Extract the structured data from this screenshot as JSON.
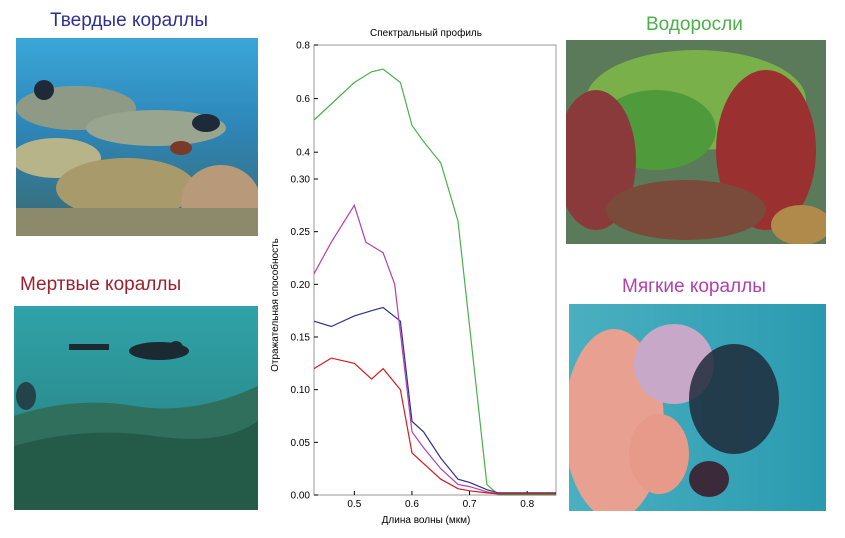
{
  "panels": {
    "hard_corals": {
      "label": "Твердые кораллы",
      "color": "#2e3192"
    },
    "dead_corals": {
      "label": "Мертвые кораллы",
      "color": "#9e1f2e"
    },
    "algae": {
      "label": "Водоросли",
      "color": "#4daf4a"
    },
    "soft_corals": {
      "label": "Мягкие кораллы",
      "color": "#b040b0"
    }
  },
  "chart_data": {
    "type": "line",
    "title": "Спектральный профиль",
    "xlabel": "Длина волны (мкм)",
    "ylabel": "Отражательная способность",
    "xlim": [
      0.43,
      0.85
    ],
    "ylim": [
      0,
      0.8
    ],
    "x_ticks": [
      {
        "value": 0.5,
        "label": "0.5"
      },
      {
        "value": 0.6,
        "label": "0.6"
      },
      {
        "value": 0.7,
        "label": "0.7"
      },
      {
        "value": 0.8,
        "label": "0.8"
      }
    ],
    "y_ticks": [
      {
        "value": 0.0,
        "label": "0.00"
      },
      {
        "value": 0.05,
        "label": "0.05"
      },
      {
        "value": 0.1,
        "label": "0.10"
      },
      {
        "value": 0.15,
        "label": "0.15"
      },
      {
        "value": 0.2,
        "label": "0.20"
      },
      {
        "value": 0.25,
        "label": "0.25"
      },
      {
        "value": 0.3,
        "label": "0.30"
      },
      {
        "value": 0.4,
        "label": "0.4"
      },
      {
        "value": 0.6,
        "label": "0.6"
      },
      {
        "value": 0.8,
        "label": "0.8"
      }
    ],
    "series": [
      {
        "color": "#4daf4a",
        "x": [
          0.43,
          0.46,
          0.5,
          0.53,
          0.55,
          0.58,
          0.6,
          0.62,
          0.65,
          0.68,
          0.7,
          0.73,
          0.75,
          0.85
        ],
        "y": [
          0.52,
          0.58,
          0.66,
          0.7,
          0.71,
          0.66,
          0.5,
          0.44,
          0.36,
          0.26,
          0.16,
          0.01,
          0.0,
          0.0
        ]
      },
      {
        "color": "#2e3192",
        "x": [
          0.43,
          0.46,
          0.5,
          0.53,
          0.55,
          0.58,
          0.6,
          0.62,
          0.65,
          0.68,
          0.7,
          0.73,
          0.75,
          0.85
        ],
        "y": [
          0.165,
          0.16,
          0.17,
          0.175,
          0.178,
          0.165,
          0.07,
          0.06,
          0.035,
          0.015,
          0.012,
          0.005,
          0.002,
          0.002
        ]
      },
      {
        "color": "#b040b0",
        "x": [
          0.43,
          0.46,
          0.5,
          0.52,
          0.55,
          0.57,
          0.6,
          0.62,
          0.65,
          0.68,
          0.7,
          0.73,
          0.75,
          0.85
        ],
        "y": [
          0.21,
          0.24,
          0.275,
          0.24,
          0.23,
          0.2,
          0.06,
          0.045,
          0.025,
          0.01,
          0.008,
          0.003,
          0.001,
          0.001
        ]
      },
      {
        "color": "#d7191c",
        "x": [
          0.43,
          0.46,
          0.5,
          0.53,
          0.55,
          0.58,
          0.6,
          0.62,
          0.65,
          0.68,
          0.7,
          0.73,
          0.75,
          0.85
        ],
        "y": [
          0.12,
          0.13,
          0.125,
          0.11,
          0.12,
          0.1,
          0.04,
          0.03,
          0.015,
          0.006,
          0.004,
          0.002,
          0.001,
          0.001
        ]
      }
    ]
  }
}
